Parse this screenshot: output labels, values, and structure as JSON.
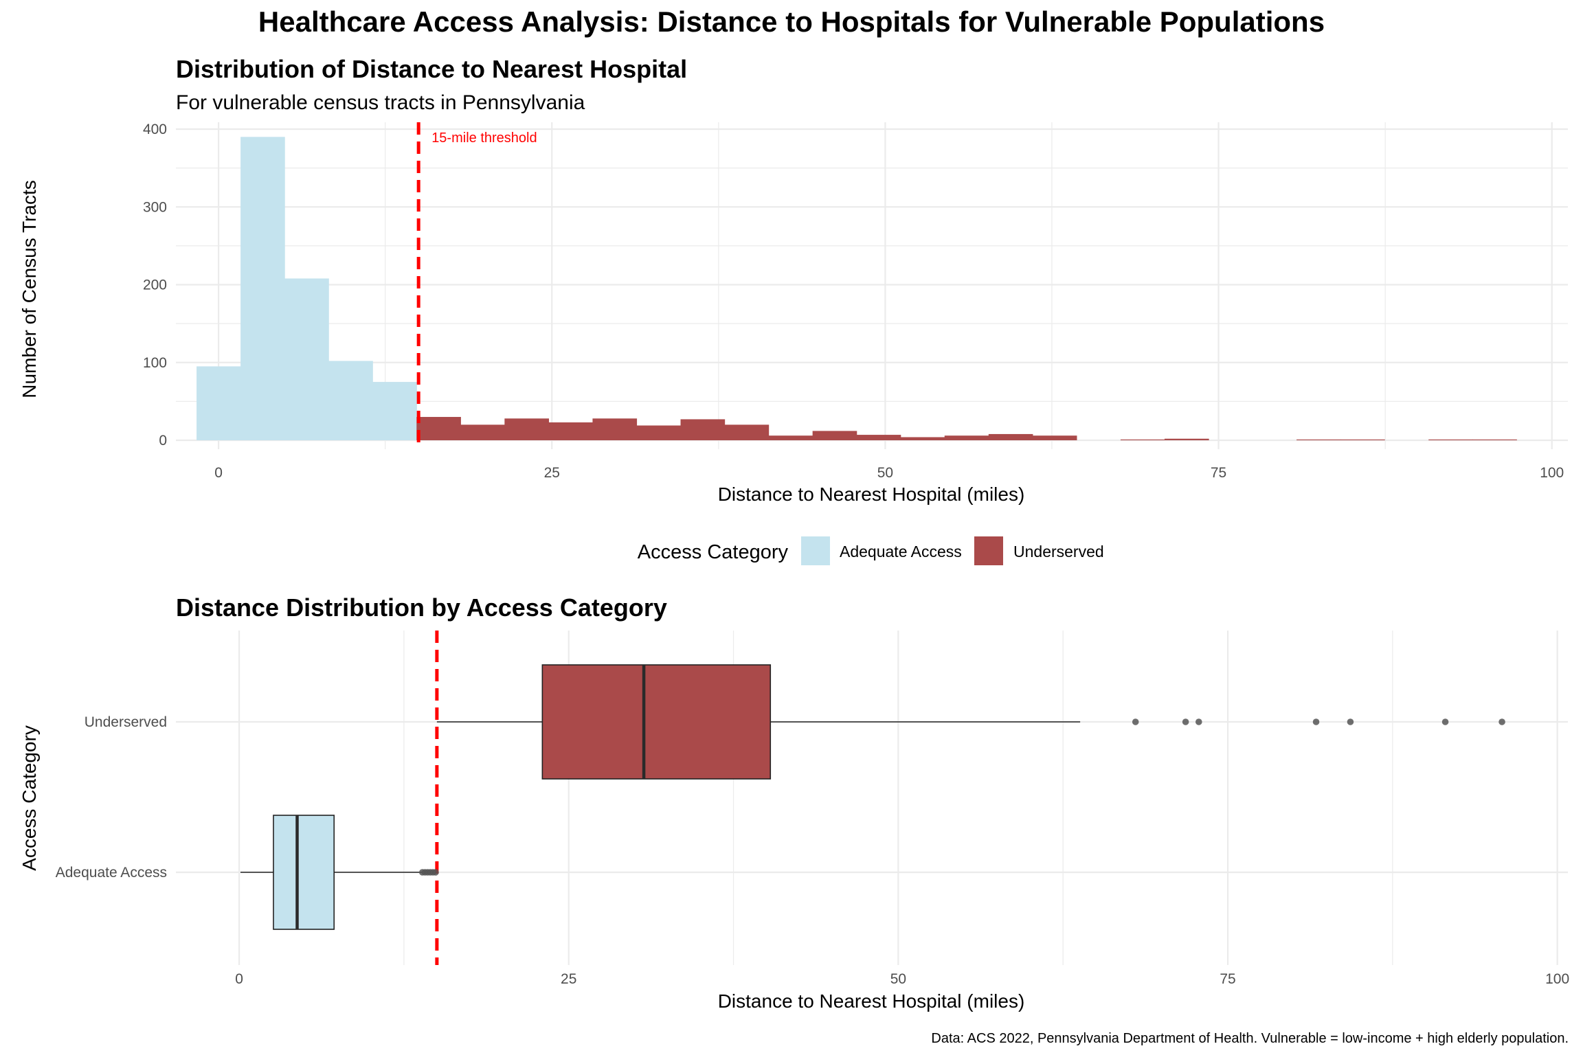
{
  "title": "Healthcare Access Analysis: Distance to Hospitals for Vulnerable Populations",
  "caption": "Data: ACS 2022, Pennsylvania Department of Health. Vulnerable = low-income + high elderly population.",
  "colors": {
    "adequate": "#c4e3ee",
    "underserved": "#aa4a4a",
    "threshold": "#ff0000",
    "grid": "#ebebeb",
    "text": "#222222",
    "tick": "#4d4d4d"
  },
  "legend": {
    "title": "Access Category",
    "items": [
      {
        "label": "Adequate Access",
        "color": "#c4e3ee"
      },
      {
        "label": "Underserved",
        "color": "#aa4a4a"
      }
    ]
  },
  "chart_data": [
    {
      "type": "bar",
      "title": "Distribution of Distance to Nearest Hospital",
      "subtitle": "For vulnerable census tracts in Pennsylvania",
      "xlabel": "Distance to Nearest Hospital (miles)",
      "ylabel": "Number of Census Tracts",
      "xlim": [
        -3.2,
        101.2
      ],
      "ylim": [
        0,
        400
      ],
      "xticks": [
        0,
        25,
        50,
        75,
        100
      ],
      "yticks": [
        0,
        100,
        200,
        300,
        400
      ],
      "bin_width": 3.3,
      "threshold": {
        "value": 15,
        "label": "15-mile threshold"
      },
      "bins": [
        {
          "start": -1.65,
          "end": 1.65,
          "count": 95,
          "category": "Adequate Access"
        },
        {
          "start": 1.65,
          "end": 4.95,
          "count": 390,
          "category": "Adequate Access"
        },
        {
          "start": 4.95,
          "end": 8.25,
          "count": 208,
          "category": "Adequate Access"
        },
        {
          "start": 8.25,
          "end": 11.55,
          "count": 102,
          "category": "Adequate Access"
        },
        {
          "start": 11.55,
          "end": 14.85,
          "count": 75,
          "category": "Adequate Access"
        },
        {
          "start": 14.85,
          "end": 18.15,
          "count": 30,
          "category": "Underserved"
        },
        {
          "start": 18.15,
          "end": 21.45,
          "count": 20,
          "category": "Underserved"
        },
        {
          "start": 21.45,
          "end": 24.75,
          "count": 28,
          "category": "Underserved"
        },
        {
          "start": 24.75,
          "end": 28.05,
          "count": 23,
          "category": "Underserved"
        },
        {
          "start": 28.05,
          "end": 31.35,
          "count": 28,
          "category": "Underserved"
        },
        {
          "start": 31.35,
          "end": 34.65,
          "count": 19,
          "category": "Underserved"
        },
        {
          "start": 34.65,
          "end": 37.95,
          "count": 27,
          "category": "Underserved"
        },
        {
          "start": 37.95,
          "end": 41.25,
          "count": 20,
          "category": "Underserved"
        },
        {
          "start": 41.25,
          "end": 44.55,
          "count": 6,
          "category": "Underserved"
        },
        {
          "start": 44.55,
          "end": 47.85,
          "count": 12,
          "category": "Underserved"
        },
        {
          "start": 47.85,
          "end": 51.15,
          "count": 7,
          "category": "Underserved"
        },
        {
          "start": 51.15,
          "end": 54.45,
          "count": 4,
          "category": "Underserved"
        },
        {
          "start": 54.45,
          "end": 57.75,
          "count": 6,
          "category": "Underserved"
        },
        {
          "start": 57.75,
          "end": 61.05,
          "count": 8,
          "category": "Underserved"
        },
        {
          "start": 61.05,
          "end": 64.35,
          "count": 6,
          "category": "Underserved"
        },
        {
          "start": 67.65,
          "end": 70.95,
          "count": 1,
          "category": "Underserved"
        },
        {
          "start": 70.95,
          "end": 74.25,
          "count": 2,
          "category": "Underserved"
        },
        {
          "start": 80.85,
          "end": 84.15,
          "count": 1,
          "category": "Underserved"
        },
        {
          "start": 84.15,
          "end": 87.45,
          "count": 1,
          "category": "Underserved"
        },
        {
          "start": 90.75,
          "end": 94.05,
          "count": 1,
          "category": "Underserved"
        },
        {
          "start": 94.05,
          "end": 97.35,
          "count": 1,
          "category": "Underserved"
        }
      ]
    },
    {
      "type": "box",
      "title": "Distance Distribution by Access Category",
      "xlabel": "Distance to Nearest Hospital (miles)",
      "ylabel": "Access Category",
      "xlim": [
        -4.8,
        100.8
      ],
      "xticks": [
        0,
        25,
        50,
        75,
        100
      ],
      "threshold": {
        "value": 15
      },
      "categories": [
        "Underserved",
        "Adequate Access"
      ],
      "boxes": [
        {
          "category": "Underserved",
          "whisker_low": 15.0,
          "q1": 23.0,
          "median": 30.7,
          "q3": 40.3,
          "whisker_high": 63.8,
          "outliers": [
            68.0,
            71.8,
            72.8,
            81.7,
            84.3,
            91.5,
            95.8
          ]
        },
        {
          "category": "Adequate Access",
          "whisker_low": 0.1,
          "q1": 2.6,
          "median": 4.4,
          "q3": 7.2,
          "whisker_high": 13.9,
          "outliers": [
            13.9,
            14.1,
            14.3,
            14.5,
            14.7,
            14.9
          ]
        }
      ]
    }
  ]
}
